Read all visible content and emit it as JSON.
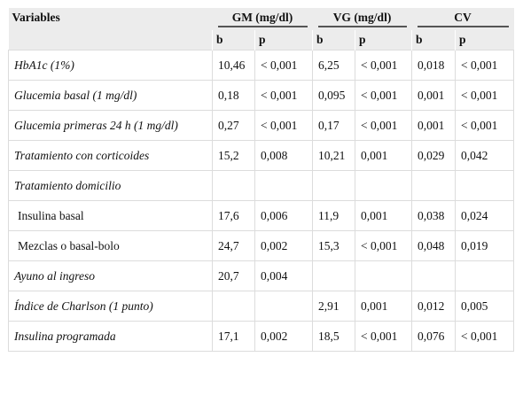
{
  "header": {
    "variables_label": "Variables",
    "groups": [
      "GM (mg/dl)",
      "VG (mg/dl)",
      "CV"
    ],
    "sub_b": "b",
    "sub_p": "p"
  },
  "rows": [
    {
      "label": "HbA1c (1%)",
      "style": "italic",
      "cells": [
        "10,46",
        "< 0,001",
        "6,25",
        "< 0,001",
        "0,018",
        "< 0,001"
      ]
    },
    {
      "label": "Glucemia basal (1 mg/dl)",
      "style": "italic",
      "cells": [
        "0,18",
        "< 0,001",
        "0,095",
        "< 0,001",
        "0,001",
        "< 0,001"
      ]
    },
    {
      "label": "Glucemia primeras 24 h (1 mg/dl)",
      "style": "italic",
      "cells": [
        "0,27",
        "< 0,001",
        "0,17",
        "< 0,001",
        "0,001",
        "< 0,001"
      ]
    },
    {
      "label": "Tratamiento con corticoides",
      "style": "italic",
      "cells": [
        "15,2",
        "0,008",
        "10,21",
        "0,001",
        "0,029",
        "0,042"
      ]
    },
    {
      "label": "Tratamiento domicilio",
      "style": "italic",
      "cells": [
        "",
        "",
        "",
        "",
        "",
        ""
      ]
    },
    {
      "label": "Insulina basal",
      "style": "plain",
      "cells": [
        "17,6",
        "0,006",
        "11,9",
        "0,001",
        "0,038",
        "0,024"
      ]
    },
    {
      "label": "Mezclas o basal-bolo",
      "style": "plain",
      "cells": [
        "24,7",
        "0,002",
        "15,3",
        "< 0,001",
        "0,048",
        "0,019"
      ]
    },
    {
      "label": "Ayuno al ingreso",
      "style": "italic",
      "cells": [
        "20,7",
        "0,004",
        "",
        "",
        "",
        ""
      ]
    },
    {
      "label": "Índice de Charlson (1 punto)",
      "style": "italic",
      "cells": [
        "",
        "",
        "2,91",
        "0,001",
        "0,012",
        "0,005"
      ]
    },
    {
      "label": "Insulina programada",
      "style": "italic",
      "cells": [
        "17,1",
        "0,002",
        "18,5",
        "< 0,001",
        "0,076",
        "< 0,001"
      ]
    }
  ]
}
